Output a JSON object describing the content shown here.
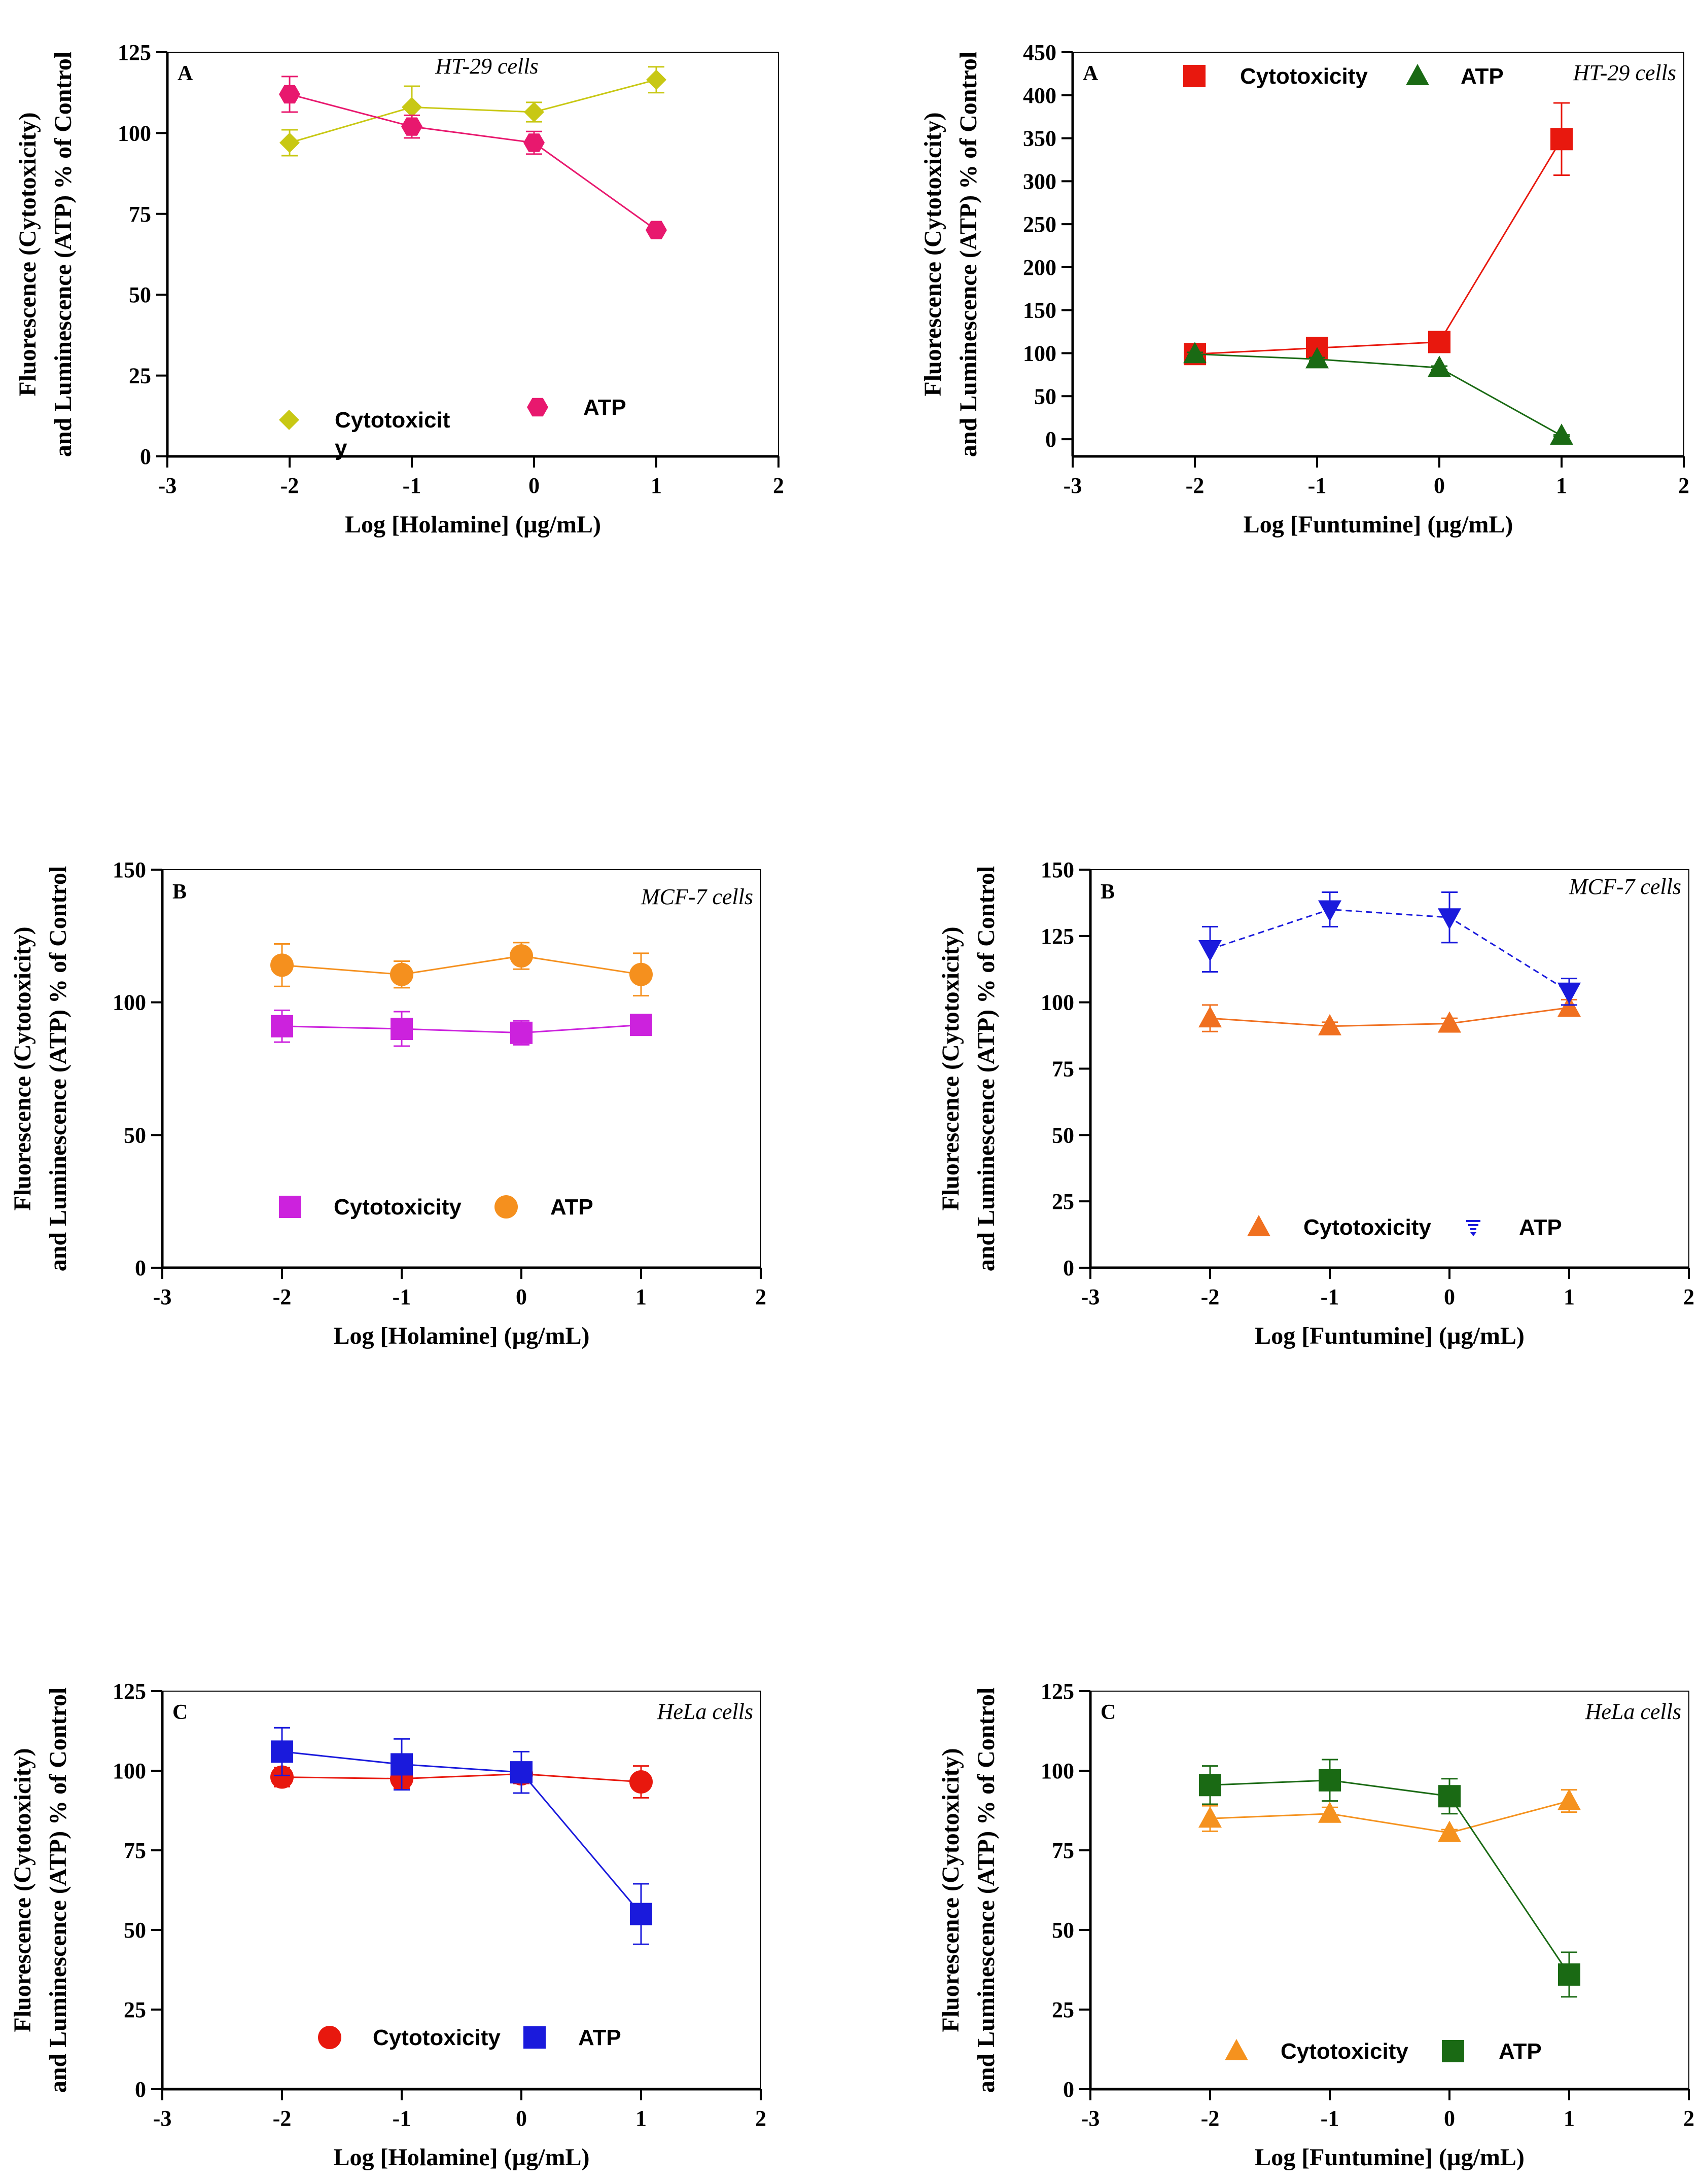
{
  "chart_data": [
    {
      "type": "line",
      "panel": "A",
      "cell_line": "HT-29 cells",
      "xlabel": "Log [Holamine] (µg/mL)",
      "ylabel_line1": "Fluorescence (Cytotoxicity)",
      "ylabel_line2": "and Luminescence (ATP)  % of Control",
      "xlim": [
        -3,
        2
      ],
      "ylim": [
        0,
        125
      ],
      "xticks": [
        -3,
        -2,
        -1,
        0,
        1,
        2
      ],
      "yticks": [
        0,
        25,
        50,
        75,
        100,
        125
      ],
      "legend_position": "bottom",
      "legend_layout": "wrap",
      "series": [
        {
          "name": "Cytotoxicity",
          "legend_label": "Cytotoxicit",
          "legend_label_wrap": "y",
          "color": "#c8c814",
          "marker": "diamond",
          "dashed": false,
          "x": [
            -2,
            -1,
            0,
            1
          ],
          "values": [
            97,
            108,
            106.5,
            116.5
          ],
          "errors": [
            4,
            6.5,
            3,
            4
          ]
        },
        {
          "name": "ATP",
          "legend_label": "ATP",
          "color": "#e8186e",
          "marker": "hexagon",
          "dashed": false,
          "x": [
            -2,
            -1,
            0,
            1
          ],
          "values": [
            112,
            102,
            97,
            70
          ],
          "errors": [
            5.5,
            3.5,
            3.5,
            1
          ]
        }
      ]
    },
    {
      "type": "line",
      "panel": "A",
      "cell_line": "HT-29 cells",
      "xlabel": "Log [Funtumine] (µg/mL)",
      "ylabel_line1": "Fluorescence (Cytotoxicity)",
      "ylabel_line2": "and Luminescence (ATP)  % of Control",
      "xlim": [
        -3,
        2
      ],
      "ylim": [
        -20,
        450
      ],
      "xticks": [
        -3,
        -2,
        -1,
        0,
        1,
        2
      ],
      "yticks": [
        0,
        50,
        100,
        150,
        200,
        250,
        300,
        350,
        400,
        450
      ],
      "legend_position": "top",
      "series": [
        {
          "name": "Cytotoxicity",
          "legend_label": "Cytotoxicity",
          "color": "#e8180e",
          "marker": "square",
          "dashed": false,
          "x": [
            -2,
            -1,
            0,
            1
          ],
          "values": [
            99,
            106,
            113,
            349
          ],
          "errors": [
            2,
            3,
            3,
            42
          ]
        },
        {
          "name": "ATP",
          "legend_label": "ATP",
          "color": "#1a6a14",
          "marker": "triangle",
          "dashed": false,
          "x": [
            -2,
            -1,
            0,
            1
          ],
          "values": [
            99,
            93,
            83,
            4
          ],
          "errors": [
            2,
            2,
            2,
            1
          ]
        }
      ]
    },
    {
      "type": "line",
      "panel": "B",
      "cell_line": "MCF-7 cells",
      "xlabel": "Log [Holamine] (µg/mL)",
      "ylabel_line1": "Fluorescence (Cytotoxicity)",
      "ylabel_line2": "and Luminescence (ATP)  % of Control",
      "xlim": [
        -3,
        2
      ],
      "ylim": [
        0,
        150
      ],
      "xticks": [
        -3,
        -2,
        -1,
        0,
        1,
        2
      ],
      "yticks": [
        0,
        50,
        100,
        150
      ],
      "legend_position": "bottom",
      "series": [
        {
          "name": "Cytotoxicity",
          "legend_label": "Cytotoxicity",
          "color": "#cc22dd",
          "marker": "square",
          "dashed": false,
          "x": [
            -2,
            -1,
            0,
            1
          ],
          "values": [
            91,
            90,
            88.5,
            91.5
          ],
          "errors": [
            6,
            6.5,
            4.5,
            3.5
          ]
        },
        {
          "name": "ATP",
          "legend_label": "ATP",
          "color": "#f5901e",
          "marker": "circle",
          "dashed": false,
          "x": [
            -2,
            -1,
            0,
            1
          ],
          "values": [
            114,
            110.5,
            117.5,
            110.5
          ],
          "errors": [
            8,
            5,
            5,
            8
          ]
        }
      ]
    },
    {
      "type": "line",
      "panel": "B",
      "cell_line": "MCF-7 cells",
      "xlabel": "Log [Funtumine] (µg/mL)",
      "ylabel_line1": "Fluorescence (Cytotoxicity)",
      "ylabel_line2": "and Luminescence (ATP)  % of Control",
      "xlim": [
        -3,
        2
      ],
      "ylim": [
        0,
        150
      ],
      "xticks": [
        -3,
        -2,
        -1,
        0,
        1,
        2
      ],
      "yticks": [
        0,
        25,
        50,
        75,
        100,
        125,
        150
      ],
      "legend_position": "bottom",
      "series": [
        {
          "name": "Cytotoxicity",
          "legend_label": "Cytotoxicity",
          "color": "#f07020",
          "marker": "triangle",
          "dashed": false,
          "x": [
            -2,
            -1,
            0,
            1
          ],
          "values": [
            94,
            91,
            92,
            98
          ],
          "errors": [
            5,
            1.5,
            2,
            3
          ]
        },
        {
          "name": "ATP",
          "legend_label": "ATP",
          "color": "#1a1adc",
          "marker": "triangle-down",
          "dashed": true,
          "x": [
            -2,
            -1,
            0,
            1
          ],
          "values": [
            120,
            135,
            132,
            104
          ],
          "errors": [
            8.5,
            6.5,
            9.5,
            5
          ]
        }
      ]
    },
    {
      "type": "line",
      "panel": "C",
      "cell_line": "HeLa cells",
      "xlabel": "Log [Holamine] (µg/mL)",
      "ylabel_line1": "Fluorescence (Cytotoxicity)",
      "ylabel_line2": "and Luminescence (ATP)  % of Control",
      "xlim": [
        -3,
        2
      ],
      "ylim": [
        0,
        125
      ],
      "xticks": [
        -3,
        -2,
        -1,
        0,
        1,
        2
      ],
      "yticks": [
        0,
        25,
        50,
        75,
        100,
        125
      ],
      "legend_position": "bottom",
      "series": [
        {
          "name": "Cytotoxicity",
          "legend_label": "Cytotoxicity",
          "color": "#e8180e",
          "marker": "circle",
          "dashed": false,
          "x": [
            -2,
            -1,
            0,
            1
          ],
          "values": [
            98,
            97.5,
            99,
            96.5
          ],
          "errors": [
            3,
            3,
            3,
            5
          ]
        },
        {
          "name": "ATP",
          "legend_label": "ATP",
          "color": "#1a1adc",
          "marker": "square",
          "dashed": false,
          "x": [
            -2,
            -1,
            0,
            1
          ],
          "values": [
            106,
            102,
            99.5,
            55
          ],
          "errors": [
            7.5,
            8,
            6.5,
            9.5
          ]
        }
      ]
    },
    {
      "type": "line",
      "panel": "C",
      "cell_line": "HeLa cells",
      "xlabel": "Log [Funtumine] (µg/mL)",
      "ylabel_line1": "Fluorescence (Cytotoxicity)",
      "ylabel_line2": "and Luminescence (ATP)  % of Control",
      "xlim": [
        -3,
        2
      ],
      "ylim": [
        0,
        125
      ],
      "xticks": [
        -3,
        -2,
        -1,
        0,
        1,
        2
      ],
      "yticks": [
        0,
        25,
        50,
        75,
        100,
        125
      ],
      "legend_position": "bottom",
      "series": [
        {
          "name": "Cytotoxicity",
          "legend_label": "Cytotoxicity",
          "color": "#f5921e",
          "marker": "triangle",
          "dashed": false,
          "x": [
            -2,
            -1,
            0,
            1
          ],
          "values": [
            85,
            86.5,
            80.5,
            90.5
          ],
          "errors": [
            4,
            2,
            1,
            3.5
          ]
        },
        {
          "name": "ATP",
          "legend_label": "ATP",
          "color": "#1a6a14",
          "marker": "square",
          "dashed": false,
          "x": [
            -2,
            -1,
            0,
            1
          ],
          "values": [
            95.5,
            97,
            92,
            36
          ],
          "errors": [
            6,
            6.5,
            5.5,
            7
          ]
        }
      ]
    }
  ]
}
